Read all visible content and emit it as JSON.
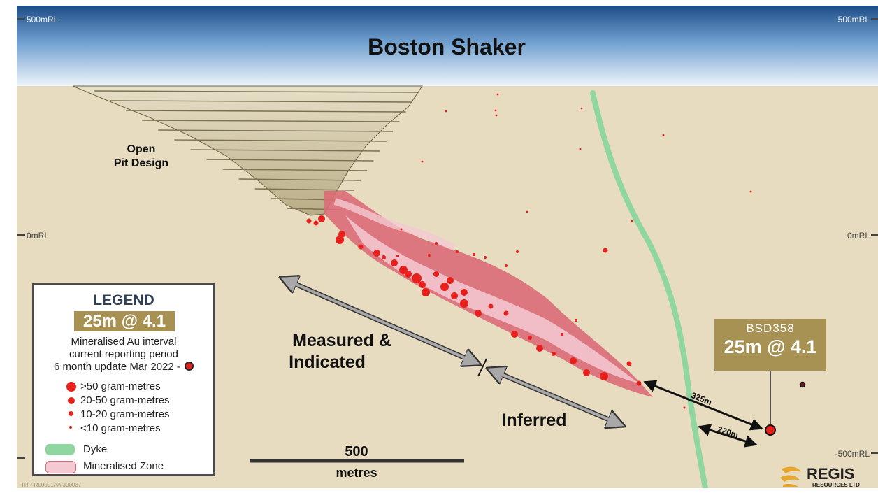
{
  "title": "Boston Shaker",
  "rl_labels": {
    "top_left": "500mRL",
    "top_right": "500mRL",
    "mid_left": "0mRL",
    "mid_right": "0mRL",
    "bottom_right": "-500mRL"
  },
  "annotations": {
    "open_pit": [
      "Open",
      "Pit Design"
    ],
    "measured": [
      "Measured &",
      "Indicated"
    ],
    "inferred": "Inferred",
    "dist_325": "325m",
    "dist_220": "220m"
  },
  "scale_bar": {
    "value": "500",
    "unit": "metres"
  },
  "legend": {
    "title": "LEGEND",
    "example": "25m @ 4.1",
    "desc_lines": [
      "Mineralised Au interval",
      "current reporting period",
      "6 month update Mar 2022 -"
    ],
    "sizes": [
      ">50 gram-metres",
      "20-50 gram-metres",
      "10-20 gram-metres",
      "<10 gram-metres"
    ],
    "dyke": "Dyke",
    "zone": "Mineralised Zone"
  },
  "callout": {
    "hole": "BSD358",
    "value": "25m @ 4.1"
  },
  "logo": {
    "name": "REGIS",
    "sub": "RESOURCES LTD"
  },
  "footer_code": "TRP-R00001AA-J00037",
  "colors": {
    "sky_top": "#1d4d86",
    "ground": "#e8dcc0",
    "dyke": "#8fd6a0",
    "zone_outer": "#dc6b78",
    "zone_inner": "#f4c9d2",
    "intercept": "#e8201c",
    "chip": "#a79254"
  }
}
